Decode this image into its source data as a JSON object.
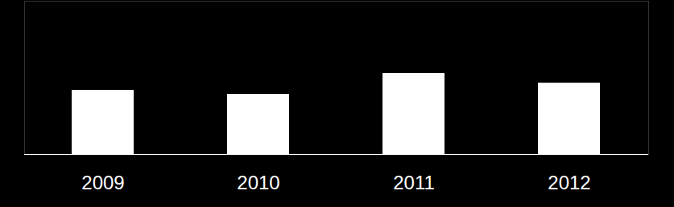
{
  "chart_data": {
    "type": "bar",
    "categories": [
      "2009",
      "2010",
      "2011",
      "2012"
    ],
    "values": [
      80,
      75,
      101,
      89
    ],
    "color": "#ffffff",
    "ylim": [
      0,
      191
    ],
    "yticks": [],
    "tick_labels": "x"
  }
}
